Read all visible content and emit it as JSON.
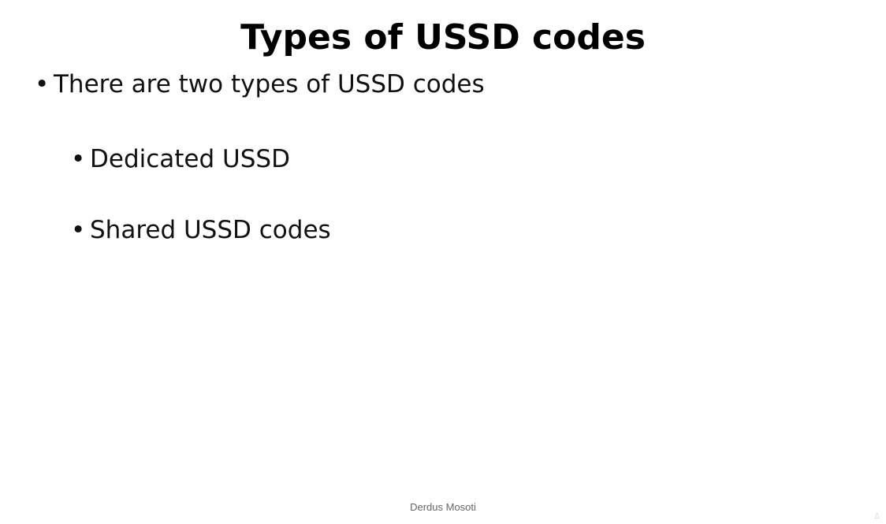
{
  "slide": {
    "title": "Types of USSD codes",
    "bullets": [
      {
        "text": "There are two types of USSD codes"
      }
    ],
    "sub_bullets": [
      {
        "text": "Dedicated USSD"
      },
      {
        "text": "Shared USSD codes"
      }
    ],
    "bullet_glyph": "•",
    "footer": "Derdus Mosoti"
  }
}
